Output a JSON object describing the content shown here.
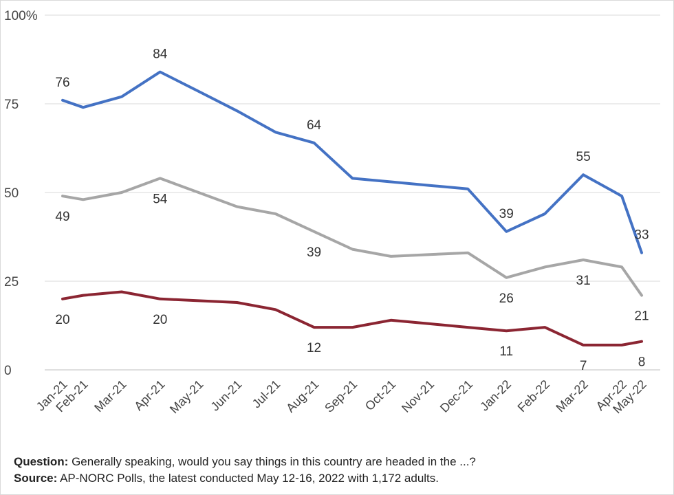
{
  "chart_data": {
    "type": "line",
    "categories": [
      "Jan-21",
      "Feb-21",
      "Mar-21",
      "Apr-21",
      "May-21",
      "Jun-21",
      "Jul-21",
      "Aug-21",
      "Sep-21",
      "Oct-21",
      "Nov-21",
      "Dec-21",
      "Jan-22",
      "Feb-22",
      "Mar-22",
      "Apr-22",
      "May-22"
    ],
    "ylim": [
      0,
      100
    ],
    "yticks": [
      0,
      25,
      50,
      75,
      100
    ],
    "ytick_labels": [
      "0",
      "25",
      "50",
      "75",
      "100%"
    ],
    "grid": true,
    "series": [
      {
        "color": "#4472c4",
        "values": [
          76,
          74,
          77,
          84,
          null,
          73,
          67,
          64,
          54,
          null,
          null,
          51,
          39,
          44,
          55,
          49,
          33
        ],
        "labeled": [
          {
            "index": 0,
            "value": 76,
            "pos": "above"
          },
          {
            "index": 3,
            "value": 84,
            "pos": "above"
          },
          {
            "index": 7,
            "value": 64,
            "pos": "above"
          },
          {
            "index": 12,
            "value": 39,
            "pos": "above"
          },
          {
            "index": 14,
            "value": 55,
            "pos": "above"
          },
          {
            "index": 16,
            "value": 33,
            "pos": "above"
          }
        ]
      },
      {
        "color": "#a6a6a6",
        "values": [
          49,
          48,
          50,
          54,
          null,
          46,
          44,
          39,
          34,
          32,
          null,
          33,
          26,
          29,
          31,
          29,
          21
        ],
        "labeled": [
          {
            "index": 0,
            "value": 49,
            "pos": "below"
          },
          {
            "index": 3,
            "value": 54,
            "pos": "below"
          },
          {
            "index": 7,
            "value": 39,
            "pos": "below"
          },
          {
            "index": 12,
            "value": 26,
            "pos": "below"
          },
          {
            "index": 14,
            "value": 31,
            "pos": "below"
          },
          {
            "index": 16,
            "value": 21,
            "pos": "below"
          }
        ]
      },
      {
        "color": "#8b2532",
        "values": [
          20,
          21,
          22,
          20,
          null,
          19,
          17,
          12,
          12,
          14,
          null,
          12,
          11,
          12,
          7,
          7,
          8
        ],
        "labeled": [
          {
            "index": 0,
            "value": 20,
            "pos": "below"
          },
          {
            "index": 3,
            "value": 20,
            "pos": "below"
          },
          {
            "index": 7,
            "value": 12,
            "pos": "below"
          },
          {
            "index": 12,
            "value": 11,
            "pos": "below"
          },
          {
            "index": 14,
            "value": 7,
            "pos": "below"
          },
          {
            "index": 16,
            "value": 8,
            "pos": "below"
          }
        ]
      }
    ]
  },
  "notes": {
    "question_label": "Question:",
    "question_text": "Generally speaking, would you say things in this country are headed in the ...?",
    "source_label": "Source:",
    "source_text": "AP-NORC Polls, the latest conducted May 12-16, 2022 with 1,172 adults."
  }
}
